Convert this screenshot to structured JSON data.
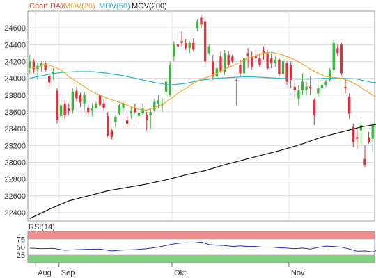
{
  "chart_data": [
    {
      "type": "candlestick",
      "legend": [
        {
          "name": "Chart DAX",
          "color": "#e8452c"
        },
        {
          "name": "MOV(20)",
          "color": "#f5a623"
        },
        {
          "name": "MOV(50)",
          "color": "#1fb8d0"
        },
        {
          "name": "MOV(200)",
          "color": "#111111"
        }
      ],
      "ylim": [
        22300,
        24800
      ],
      "y_ticks": [
        22400,
        22600,
        22800,
        23000,
        23200,
        23400,
        23600,
        23800,
        24000,
        24200,
        24400,
        24600
      ],
      "x_labels": [
        {
          "label": "Aug",
          "index": 2
        },
        {
          "label": "Sep",
          "index": 8
        },
        {
          "label": "Okt",
          "index": 37
        },
        {
          "label": "Nov",
          "index": 67
        }
      ],
      "up_color": "#3ab53a",
      "down_color": "#e0303a",
      "candles": [
        [
          24120,
          24280,
          24050,
          24200
        ],
        [
          24200,
          24230,
          24060,
          24110
        ],
        [
          24110,
          24190,
          23980,
          24150
        ],
        [
          24150,
          24200,
          24080,
          24180
        ],
        [
          24180,
          24200,
          24080,
          24100
        ],
        [
          24030,
          24060,
          23900,
          23950
        ],
        [
          24050,
          24120,
          23980,
          24080
        ],
        [
          23850,
          23880,
          23460,
          23500
        ],
        [
          23550,
          23720,
          23500,
          23680
        ],
        [
          23700,
          23740,
          23520,
          23560
        ],
        [
          23640,
          23700,
          23560,
          23610
        ],
        [
          23620,
          23880,
          23580,
          23840
        ],
        [
          23850,
          23900,
          23720,
          23760
        ],
        [
          23800,
          23830,
          23660,
          23710
        ],
        [
          23700,
          23840,
          23620,
          23800
        ],
        [
          23650,
          23680,
          23560,
          23600
        ],
        [
          23620,
          23700,
          23550,
          23640
        ],
        [
          23650,
          23720,
          23640,
          23700
        ],
        [
          23800,
          23820,
          23660,
          23680
        ],
        [
          23700,
          23760,
          23620,
          23650
        ],
        [
          23550,
          23600,
          23300,
          23320
        ],
        [
          23380,
          23400,
          23270,
          23300
        ],
        [
          23480,
          23560,
          23420,
          23540
        ],
        [
          23580,
          23700,
          23560,
          23680
        ],
        [
          23650,
          23720,
          23620,
          23700
        ],
        [
          23500,
          23560,
          23420,
          23460
        ],
        [
          23580,
          23660,
          23520,
          23620
        ],
        [
          23640,
          23700,
          23580,
          23600
        ],
        [
          23550,
          23620,
          23460,
          23590
        ],
        [
          23580,
          23700,
          23560,
          23640
        ],
        [
          23560,
          23600,
          23380,
          23500
        ],
        [
          23560,
          23640,
          23400,
          23600
        ],
        [
          23620,
          23760,
          23600,
          23720
        ],
        [
          23700,
          23800,
          23640,
          23740
        ],
        [
          23680,
          23760,
          23600,
          23700
        ],
        [
          23840,
          24000,
          23800,
          23960
        ],
        [
          23800,
          24200,
          23780,
          24160
        ],
        [
          24260,
          24440,
          24200,
          24400
        ],
        [
          24400,
          24540,
          24340,
          24380
        ],
        [
          24440,
          24560,
          24380,
          24420
        ],
        [
          24420,
          24470,
          24340,
          24360
        ],
        [
          24360,
          24440,
          24300,
          24420
        ],
        [
          24420,
          24480,
          24320,
          24340
        ],
        [
          24600,
          24700,
          24560,
          24680
        ],
        [
          24720,
          24760,
          24600,
          24640
        ],
        [
          24680,
          24700,
          24180,
          24200
        ],
        [
          24300,
          24400,
          24280,
          24380
        ],
        [
          24200,
          24280,
          23980,
          24020
        ],
        [
          24020,
          24200,
          24000,
          24120
        ],
        [
          24260,
          24320,
          24060,
          24080
        ],
        [
          24080,
          24340,
          24040,
          24300
        ],
        [
          24280,
          24320,
          24120,
          24160
        ],
        [
          24260,
          24280,
          24180,
          24200
        ],
        [
          23980,
          24000,
          23680,
          23980
        ],
        [
          24160,
          24220,
          24020,
          24060
        ],
        [
          24060,
          24260,
          24020,
          24240
        ],
        [
          24300,
          24360,
          24120,
          24260
        ],
        [
          24260,
          24320,
          24100,
          24140
        ],
        [
          24260,
          24340,
          24200,
          24240
        ],
        [
          24240,
          24300,
          24140,
          24160
        ],
        [
          24320,
          24380,
          24220,
          24300
        ],
        [
          24300,
          24340,
          24100,
          24120
        ],
        [
          24240,
          24300,
          24120,
          24180
        ],
        [
          24180,
          24260,
          24140,
          24220
        ],
        [
          24220,
          24240,
          24020,
          24050
        ],
        [
          24050,
          24260,
          24020,
          24200
        ],
        [
          24180,
          24200,
          23920,
          23960
        ],
        [
          24160,
          24200,
          23880,
          23980
        ],
        [
          23900,
          23980,
          23760,
          23860
        ],
        [
          23760,
          23920,
          23680,
          23860
        ],
        [
          23860,
          24060,
          23800,
          23960
        ],
        [
          23860,
          23960,
          23800,
          23900
        ],
        [
          23900,
          24020,
          23800,
          23880
        ],
        [
          23740,
          23760,
          23440,
          23560
        ],
        [
          23820,
          23920,
          23780,
          23880
        ],
        [
          23880,
          23960,
          23840,
          23920
        ],
        [
          23920,
          23980,
          23900,
          23960
        ],
        [
          23980,
          24120,
          23960,
          24100
        ],
        [
          24100,
          24460,
          24060,
          24420
        ],
        [
          24360,
          24400,
          24260,
          24300
        ],
        [
          24400,
          24420,
          24040,
          24060
        ],
        [
          23900,
          24000,
          23820,
          23880
        ],
        [
          23780,
          23820,
          23520,
          23580
        ],
        [
          23420,
          23460,
          23180,
          23240
        ],
        [
          23300,
          23400,
          23160,
          23280
        ],
        [
          23380,
          23500,
          23220,
          23440
        ],
        [
          23040,
          23200,
          22940,
          22970
        ],
        [
          23300,
          23360,
          23220,
          23240
        ],
        [
          23280,
          23480,
          23120,
          23440
        ]
      ],
      "mov20": [
        [
          0,
          24120
        ],
        [
          2,
          24130
        ],
        [
          4,
          24170
        ],
        [
          6,
          24140
        ],
        [
          8,
          24100
        ],
        [
          10,
          24020
        ],
        [
          12,
          23960
        ],
        [
          14,
          23900
        ],
        [
          16,
          23840
        ],
        [
          18,
          23800
        ],
        [
          20,
          23760
        ],
        [
          22,
          23730
        ],
        [
          24,
          23700
        ],
        [
          26,
          23660
        ],
        [
          28,
          23630
        ],
        [
          30,
          23620
        ],
        [
          32,
          23650
        ],
        [
          34,
          23690
        ],
        [
          36,
          23750
        ],
        [
          38,
          23820
        ],
        [
          40,
          23880
        ],
        [
          42,
          23940
        ],
        [
          44,
          23990
        ],
        [
          46,
          24020
        ],
        [
          48,
          24060
        ],
        [
          50,
          24110
        ],
        [
          52,
          24150
        ],
        [
          54,
          24190
        ],
        [
          56,
          24240
        ],
        [
          58,
          24270
        ],
        [
          60,
          24300
        ],
        [
          62,
          24310
        ],
        [
          64,
          24290
        ],
        [
          66,
          24260
        ],
        [
          68,
          24220
        ],
        [
          70,
          24170
        ],
        [
          72,
          24110
        ],
        [
          74,
          24060
        ],
        [
          76,
          24020
        ],
        [
          78,
          24010
        ],
        [
          80,
          24000
        ],
        [
          82,
          23970
        ],
        [
          84,
          23920
        ],
        [
          86,
          23860
        ],
        [
          88,
          23800
        ],
        [
          90,
          23760
        ]
      ],
      "mov50": [
        [
          0,
          24000
        ],
        [
          4,
          24040
        ],
        [
          8,
          24070
        ],
        [
          12,
          24080
        ],
        [
          16,
          24080
        ],
        [
          20,
          24060
        ],
        [
          24,
          24030
        ],
        [
          28,
          23990
        ],
        [
          32,
          23950
        ],
        [
          36,
          23920
        ],
        [
          40,
          23940
        ],
        [
          44,
          23980
        ],
        [
          48,
          24000
        ],
        [
          52,
          24010
        ],
        [
          56,
          24020
        ],
        [
          60,
          24010
        ],
        [
          64,
          24000
        ],
        [
          68,
          23990
        ],
        [
          72,
          23990
        ],
        [
          76,
          24000
        ],
        [
          80,
          24000
        ],
        [
          84,
          23990
        ],
        [
          88,
          23950
        ],
        [
          90,
          23950
        ]
      ],
      "mov200": [
        [
          0,
          22330
        ],
        [
          5,
          22440
        ],
        [
          10,
          22540
        ],
        [
          15,
          22600
        ],
        [
          20,
          22660
        ],
        [
          25,
          22700
        ],
        [
          30,
          22740
        ],
        [
          35,
          22790
        ],
        [
          40,
          22850
        ],
        [
          45,
          22900
        ],
        [
          50,
          22970
        ],
        [
          55,
          23030
        ],
        [
          60,
          23090
        ],
        [
          65,
          23150
        ],
        [
          70,
          23220
        ],
        [
          75,
          23300
        ],
        [
          80,
          23360
        ],
        [
          85,
          23420
        ],
        [
          90,
          23460
        ]
      ]
    },
    {
      "type": "line",
      "title": "RSI(14)",
      "ylim": [
        0,
        100
      ],
      "y_ticks": [
        25,
        50,
        75
      ],
      "overbought": 75,
      "oversold": 25,
      "line_color": "#2233bb",
      "rsi": [
        [
          0,
          47
        ],
        [
          3,
          45
        ],
        [
          6,
          46
        ],
        [
          9,
          40
        ],
        [
          12,
          42
        ],
        [
          15,
          43
        ],
        [
          18,
          44
        ],
        [
          21,
          38
        ],
        [
          24,
          41
        ],
        [
          27,
          42
        ],
        [
          30,
          45
        ],
        [
          33,
          50
        ],
        [
          36,
          58
        ],
        [
          38,
          62
        ],
        [
          40,
          64
        ],
        [
          42,
          63
        ],
        [
          44,
          66
        ],
        [
          46,
          58
        ],
        [
          48,
          56
        ],
        [
          50,
          55
        ],
        [
          52,
          52
        ],
        [
          54,
          54
        ],
        [
          56,
          52
        ],
        [
          58,
          52
        ],
        [
          60,
          50
        ],
        [
          62,
          50
        ],
        [
          64,
          48
        ],
        [
          66,
          47
        ],
        [
          68,
          45
        ],
        [
          70,
          47
        ],
        [
          72,
          44
        ],
        [
          74,
          49
        ],
        [
          76,
          53
        ],
        [
          78,
          52
        ],
        [
          80,
          50
        ],
        [
          82,
          44
        ],
        [
          84,
          37
        ],
        [
          86,
          38
        ],
        [
          88,
          35
        ],
        [
          90,
          45
        ]
      ]
    }
  ]
}
